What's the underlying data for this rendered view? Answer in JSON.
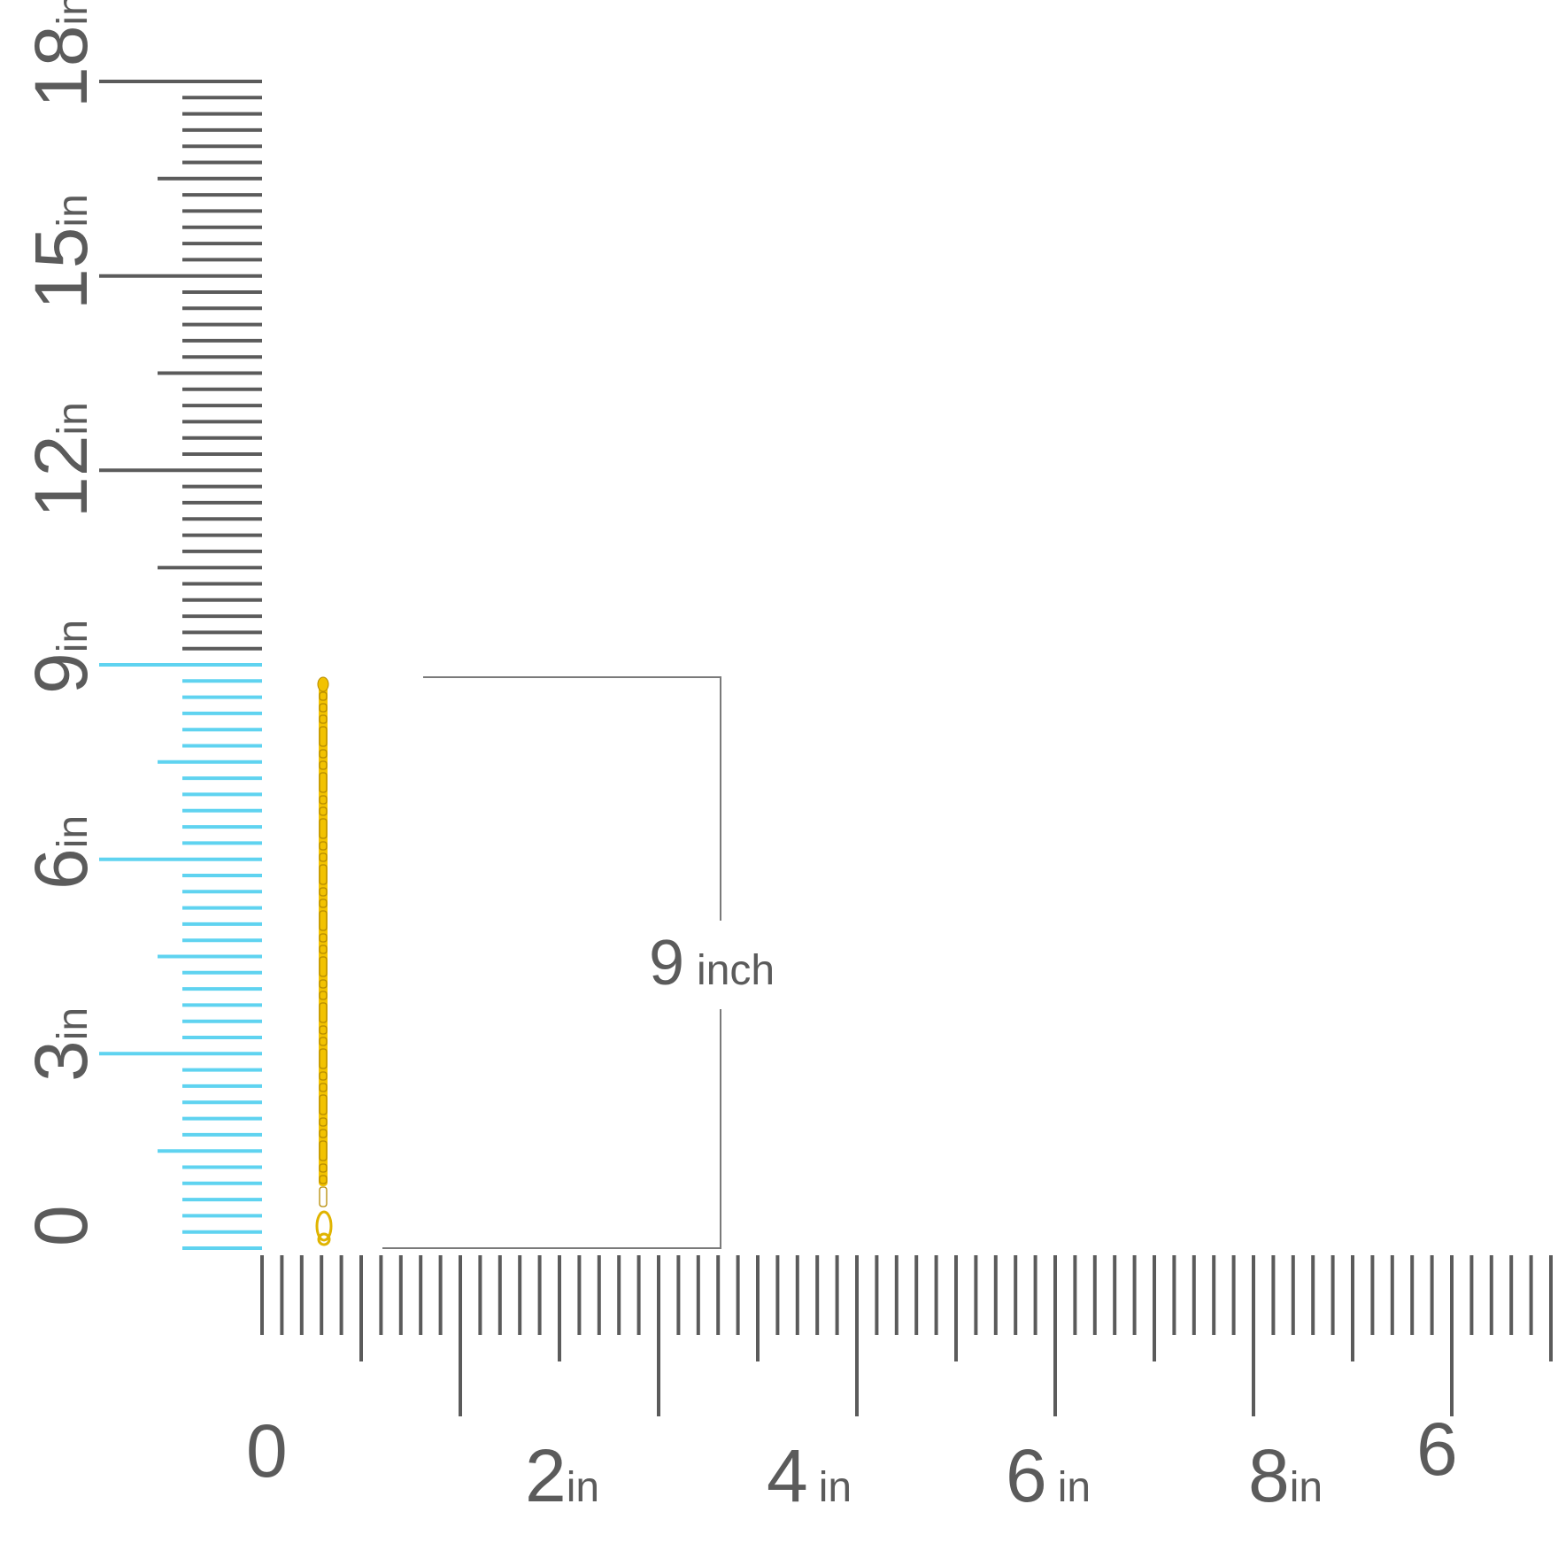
{
  "vertical_ruler": {
    "labels": [
      {
        "value": "0",
        "unit": ""
      },
      {
        "value": "3",
        "unit": "in"
      },
      {
        "value": "6",
        "unit": "in"
      },
      {
        "value": "9",
        "unit": "in"
      },
      {
        "value": "12",
        "unit": "in"
      },
      {
        "value": "15",
        "unit": "in"
      },
      {
        "value": "18",
        "unit": "in"
      }
    ],
    "highlight_up_to_in": 9
  },
  "horizontal_ruler": {
    "labels": [
      {
        "value": "0",
        "unit": ""
      },
      {
        "value": "2",
        "unit": "in"
      },
      {
        "value": "4",
        "unit": "in"
      },
      {
        "value": "6",
        "unit": "in"
      },
      {
        "value": "8",
        "unit": "in"
      },
      {
        "value": "6",
        "unit": ""
      }
    ]
  },
  "measurement": {
    "value": "9",
    "unit": "inch"
  },
  "colors": {
    "tick": "#5b5b5b",
    "highlight": "#5fd3f0",
    "chain": "#f2c200",
    "chain_dark": "#b58a00",
    "dimension_line": "#7a7a7a"
  }
}
